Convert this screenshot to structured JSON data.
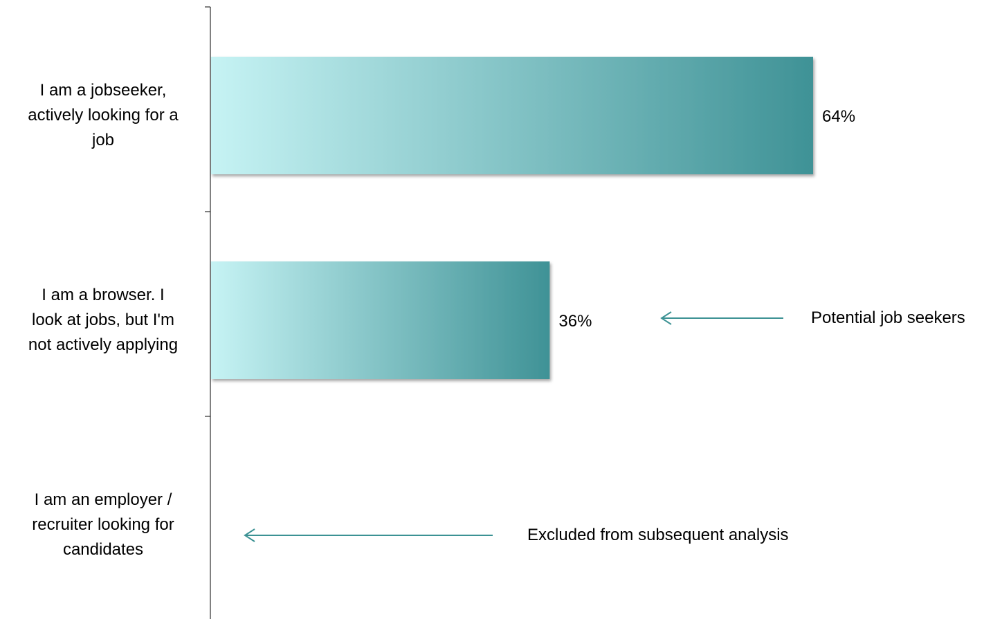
{
  "chart_data": {
    "type": "bar",
    "orientation": "horizontal",
    "categories": [
      "I am a jobseeker, actively looking for a job",
      "I am a browser. I look at jobs, but I'm not actively applying",
      "I am an employer / recruiter looking for candidates"
    ],
    "category_label_lines": [
      [
        "I am a jobseeker,",
        "actively looking for a",
        "job"
      ],
      [
        "I am a browser. I",
        "look at jobs, but I'm",
        "not actively applying"
      ],
      [
        "I am an employer /",
        "recruiter looking for",
        "candidates"
      ]
    ],
    "values": [
      64,
      null,
      null
    ],
    "data_labels": [
      "64%",
      "36%",
      ""
    ],
    "bar_values": [
      64,
      36,
      null
    ],
    "xlim": [
      0,
      70
    ],
    "title": "",
    "xlabel": "",
    "ylabel": "",
    "grid": false,
    "legend": "none",
    "colors": {
      "bar_start": "#c6f3f4",
      "bar_end": "#3f9296",
      "arrow": "#3c9294",
      "axis": "#000000"
    },
    "annotations": [
      {
        "text": "Potential job seekers",
        "points_to": "I am a browser. I look at jobs, but I'm not actively applying"
      },
      {
        "text": "Excluded from subsequent analysis",
        "points_to": "I am an employer / recruiter looking for candidates"
      }
    ]
  }
}
